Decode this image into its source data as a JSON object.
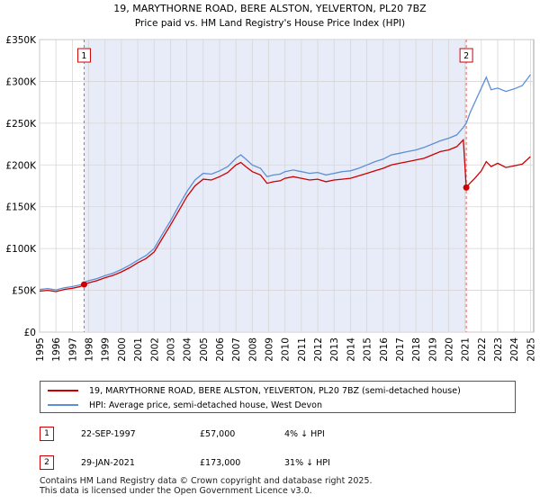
{
  "chart_data": {
    "type": "line",
    "title": "19, MARYTHORNE ROAD, BERE ALSTON, YELVERTON, PL20 7BZ",
    "subtitle": "Price paid vs. HM Land Registry's House Price Index (HPI)",
    "xlabel": "",
    "ylabel": "",
    "xlim": [
      1995,
      2025.2
    ],
    "ylim": [
      0,
      350000
    ],
    "grid": true,
    "x_ticks": [
      1995,
      1996,
      1997,
      1998,
      1999,
      2000,
      2001,
      2002,
      2003,
      2004,
      2005,
      2006,
      2007,
      2008,
      2009,
      2010,
      2011,
      2012,
      2013,
      2014,
      2015,
      2016,
      2017,
      2018,
      2019,
      2020,
      2021,
      2022,
      2023,
      2024,
      2025
    ],
    "y_ticks": [
      {
        "value": 0,
        "label": "£0"
      },
      {
        "value": 50000,
        "label": "£50K"
      },
      {
        "value": 100000,
        "label": "£100K"
      },
      {
        "value": 150000,
        "label": "£150K"
      },
      {
        "value": 200000,
        "label": "£200K"
      },
      {
        "value": 250000,
        "label": "£250K"
      },
      {
        "value": 300000,
        "label": "£300K"
      },
      {
        "value": 350000,
        "label": "£350K"
      }
    ],
    "series": [
      {
        "name": "19, MARYTHORNE ROAD, BERE ALSTON, YELVERTON, PL20 7BZ (semi-detached house)",
        "color": "#cc0000",
        "x": [
          1995.0,
          1995.5,
          1996.0,
          1996.5,
          1997.0,
          1997.5,
          1997.72,
          1998.0,
          1998.5,
          1999.0,
          1999.5,
          2000.0,
          2000.5,
          2001.0,
          2001.5,
          2002.0,
          2002.5,
          2003.0,
          2003.5,
          2004.0,
          2004.5,
          2005.0,
          2005.5,
          2006.0,
          2006.5,
          2007.0,
          2007.3,
          2007.6,
          2008.0,
          2008.5,
          2008.9,
          2009.3,
          2009.7,
          2010.0,
          2010.5,
          2011.0,
          2011.5,
          2012.0,
          2012.5,
          2013.0,
          2013.5,
          2014.0,
          2014.5,
          2015.0,
          2015.5,
          2016.0,
          2016.5,
          2017.0,
          2017.5,
          2018.0,
          2018.5,
          2019.0,
          2019.5,
          2020.0,
          2020.5,
          2020.9,
          2021.08,
          2021.3,
          2021.6,
          2022.0,
          2022.3,
          2022.6,
          2023.0,
          2023.5,
          2024.0,
          2024.5,
          2025.0
        ],
        "y": [
          49000,
          50000,
          48500,
          51000,
          52500,
          54500,
          57000,
          59000,
          61500,
          65000,
          68000,
          72000,
          77000,
          83000,
          88000,
          96000,
          112000,
          128000,
          145000,
          162000,
          175000,
          183000,
          182000,
          186000,
          191000,
          200000,
          203000,
          198000,
          192000,
          188000,
          178000,
          180000,
          181000,
          184000,
          186000,
          184000,
          182000,
          183000,
          180000,
          182000,
          183000,
          184000,
          187000,
          190000,
          193000,
          196000,
          200000,
          202000,
          204000,
          206000,
          208000,
          212000,
          216000,
          218000,
          222000,
          230000,
          173000,
          178000,
          184000,
          193000,
          204000,
          198000,
          202000,
          197000,
          199000,
          201000,
          210000
        ]
      },
      {
        "name": "HPI: Average price, semi-detached house, West Devon",
        "color": "#5b8fd6",
        "x": [
          1995.0,
          1995.5,
          1996.0,
          1996.5,
          1997.0,
          1997.5,
          1997.72,
          1998.0,
          1998.5,
          1999.0,
          1999.5,
          2000.0,
          2000.5,
          2001.0,
          2001.5,
          2002.0,
          2002.5,
          2003.0,
          2003.5,
          2004.0,
          2004.5,
          2005.0,
          2005.5,
          2006.0,
          2006.5,
          2007.0,
          2007.3,
          2007.6,
          2008.0,
          2008.5,
          2008.9,
          2009.3,
          2009.7,
          2010.0,
          2010.5,
          2011.0,
          2011.5,
          2012.0,
          2012.5,
          2013.0,
          2013.5,
          2014.0,
          2014.5,
          2015.0,
          2015.5,
          2016.0,
          2016.5,
          2017.0,
          2017.5,
          2018.0,
          2018.5,
          2019.0,
          2019.5,
          2020.0,
          2020.5,
          2020.9,
          2021.08,
          2021.3,
          2021.6,
          2022.0,
          2022.3,
          2022.6,
          2023.0,
          2023.5,
          2024.0,
          2024.5,
          2025.0
        ],
        "y": [
          51000,
          52000,
          50500,
          53000,
          54500,
          56500,
          59500,
          61500,
          64000,
          67500,
          70500,
          75000,
          80000,
          86000,
          91500,
          100000,
          117000,
          133000,
          151000,
          168000,
          182000,
          190000,
          189000,
          193000,
          198000,
          208000,
          212000,
          207000,
          200000,
          196000,
          186000,
          188000,
          189000,
          192000,
          194000,
          192000,
          190000,
          191000,
          188000,
          190000,
          192000,
          193000,
          196000,
          200000,
          204000,
          207000,
          212000,
          214000,
          216000,
          218000,
          221000,
          225000,
          229000,
          232000,
          236000,
          245000,
          250000,
          262000,
          275000,
          292000,
          305000,
          290000,
          292000,
          288000,
          291000,
          295000,
          308000
        ]
      }
    ],
    "annotations": [
      {
        "label": "1",
        "x": 1997.72,
        "y": 57000
      },
      {
        "label": "2",
        "x": 2021.08,
        "y": 173000
      }
    ]
  },
  "legend": {
    "property_label": "19, MARYTHORNE ROAD, BERE ALSTON, YELVERTON, PL20 7BZ (semi-detached house)",
    "hpi_label": "HPI: Average price, semi-detached house, West Devon"
  },
  "sales": [
    {
      "num": "1",
      "date": "22-SEP-1997",
      "price": "£57,000",
      "hpi": "4% ↓ HPI"
    },
    {
      "num": "2",
      "date": "29-JAN-2021",
      "price": "£173,000",
      "hpi": "31% ↓ HPI"
    }
  ],
  "footer": {
    "line1": "Contains HM Land Registry data © Crown copyright and database right 2025.",
    "line2": "This data is licensed under the Open Government Licence v3.0."
  }
}
